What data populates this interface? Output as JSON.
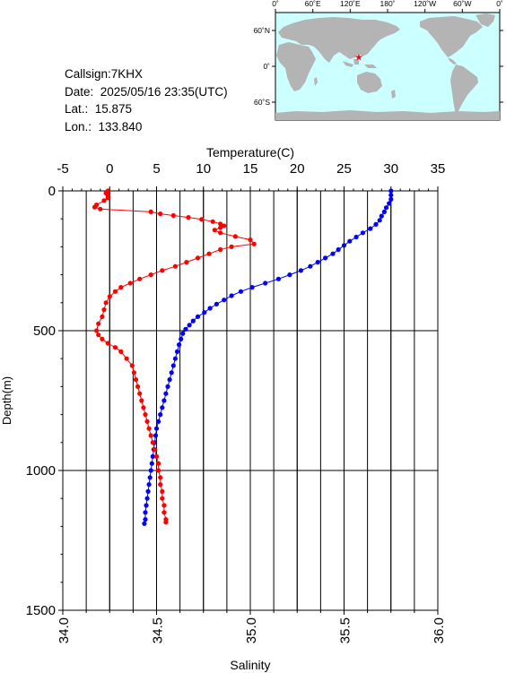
{
  "station": {
    "callsign_line": "Callsign:7KHX",
    "date_line": "Date:  2025/05/16 23:35(UTC)",
    "lat_line": "Lat.:  15.875",
    "lon_line": "Lon.:  133.840"
  },
  "map": {
    "lon_labels": [
      "0˚",
      "60˚E",
      "120˚E",
      "180˚",
      "120˚W",
      "60˚W",
      "0˚"
    ],
    "lat_labels": [
      "60˚N",
      "0˚",
      "60˚S"
    ],
    "ocean_color": "#ccffff",
    "land_color": "#b4b4b4",
    "marker": {
      "lon": 133.84,
      "lat": 15.875,
      "color": "#ff0000",
      "symbol": "star"
    }
  },
  "chart_data": {
    "type": "line",
    "y_axis": {
      "label": "Depth(m)",
      "range": [
        0,
        1500
      ],
      "inverted": true,
      "ticks": [
        0,
        500,
        1000,
        1500
      ]
    },
    "x_top_axis": {
      "label": "Temperature(C)",
      "range": [
        -5,
        35
      ],
      "ticks": [
        -5,
        0,
        5,
        10,
        15,
        20,
        25,
        30,
        35
      ]
    },
    "x_bottom_axis": {
      "label": "Salinity",
      "range": [
        34.0,
        36.0
      ],
      "ticks": [
        "34.0",
        "34.5",
        "35.0",
        "35.5",
        "36.0"
      ]
    },
    "grid": true,
    "series": [
      {
        "quantity": "temperature",
        "axis": "top",
        "color": "#0000ff",
        "points": [
          [
            30.0,
            0
          ],
          [
            30.0,
            15
          ],
          [
            30.0,
            30
          ],
          [
            29.8,
            45
          ],
          [
            29.5,
            60
          ],
          [
            29.3,
            75
          ],
          [
            29.0,
            90
          ],
          [
            28.8,
            105
          ],
          [
            28.4,
            120
          ],
          [
            27.8,
            135
          ],
          [
            27.0,
            150
          ],
          [
            26.3,
            165
          ],
          [
            25.6,
            180
          ],
          [
            25.0,
            195
          ],
          [
            24.4,
            210
          ],
          [
            23.8,
            225
          ],
          [
            23.0,
            240
          ],
          [
            22.2,
            255
          ],
          [
            21.4,
            270
          ],
          [
            20.4,
            285
          ],
          [
            19.2,
            300
          ],
          [
            18.0,
            315
          ],
          [
            16.6,
            330
          ],
          [
            15.2,
            345
          ],
          [
            14.0,
            360
          ],
          [
            13.0,
            375
          ],
          [
            12.2,
            390
          ],
          [
            11.4,
            405
          ],
          [
            10.7,
            420
          ],
          [
            10.1,
            435
          ],
          [
            9.4,
            450
          ],
          [
            8.9,
            465
          ],
          [
            8.5,
            480
          ],
          [
            8.1,
            495
          ],
          [
            7.8,
            510
          ],
          [
            7.6,
            530
          ],
          [
            7.4,
            550
          ],
          [
            7.2,
            575
          ],
          [
            7.0,
            600
          ],
          [
            6.8,
            625
          ],
          [
            6.6,
            650
          ],
          [
            6.4,
            675
          ],
          [
            6.2,
            700
          ],
          [
            6.0,
            725
          ],
          [
            5.8,
            750
          ],
          [
            5.6,
            775
          ],
          [
            5.4,
            800
          ],
          [
            5.2,
            825
          ],
          [
            5.0,
            850
          ],
          [
            4.9,
            875
          ],
          [
            4.8,
            900
          ],
          [
            4.7,
            925
          ],
          [
            4.6,
            950
          ],
          [
            4.5,
            975
          ],
          [
            4.4,
            1000
          ],
          [
            4.3,
            1025
          ],
          [
            4.2,
            1050
          ],
          [
            4.1,
            1075
          ],
          [
            4.0,
            1100
          ],
          [
            3.9,
            1125
          ],
          [
            3.8,
            1150
          ],
          [
            3.8,
            1175
          ],
          [
            3.7,
            1190
          ]
        ]
      },
      {
        "quantity": "salinity",
        "axis": "bottom",
        "color": "#ff0000",
        "points": [
          [
            34.24,
            0
          ],
          [
            34.23,
            8
          ],
          [
            34.24,
            15
          ],
          [
            34.24,
            25
          ],
          [
            34.22,
            35
          ],
          [
            34.18,
            50
          ],
          [
            34.17,
            58
          ],
          [
            34.2,
            65
          ],
          [
            34.47,
            75
          ],
          [
            34.52,
            82
          ],
          [
            34.59,
            88
          ],
          [
            34.67,
            95
          ],
          [
            34.74,
            102
          ],
          [
            34.8,
            110
          ],
          [
            34.84,
            118
          ],
          [
            34.86,
            125
          ],
          [
            34.84,
            132
          ],
          [
            34.81,
            140
          ],
          [
            34.84,
            150
          ],
          [
            34.92,
            163
          ],
          [
            35.0,
            175
          ],
          [
            35.02,
            190
          ],
          [
            34.9,
            200
          ],
          [
            34.84,
            210
          ],
          [
            34.78,
            225
          ],
          [
            34.72,
            240
          ],
          [
            34.66,
            255
          ],
          [
            34.6,
            270
          ],
          [
            34.53,
            285
          ],
          [
            34.47,
            300
          ],
          [
            34.41,
            315
          ],
          [
            34.36,
            330
          ],
          [
            34.31,
            345
          ],
          [
            34.28,
            360
          ],
          [
            34.25,
            378
          ],
          [
            34.23,
            400
          ],
          [
            34.22,
            425
          ],
          [
            34.21,
            450
          ],
          [
            34.19,
            475
          ],
          [
            34.18,
            500
          ],
          [
            34.19,
            515
          ],
          [
            34.21,
            530
          ],
          [
            34.24,
            545
          ],
          [
            34.28,
            560
          ],
          [
            34.31,
            575
          ],
          [
            34.34,
            600
          ],
          [
            34.37,
            625
          ],
          [
            34.38,
            650
          ],
          [
            34.39,
            675
          ],
          [
            34.4,
            700
          ],
          [
            34.41,
            725
          ],
          [
            34.42,
            750
          ],
          [
            34.43,
            775
          ],
          [
            34.44,
            800
          ],
          [
            34.45,
            825
          ],
          [
            34.46,
            850
          ],
          [
            34.47,
            875
          ],
          [
            34.48,
            900
          ],
          [
            34.49,
            925
          ],
          [
            34.5,
            950
          ],
          [
            34.51,
            975
          ],
          [
            34.51,
            1000
          ],
          [
            34.52,
            1025
          ],
          [
            34.52,
            1050
          ],
          [
            34.53,
            1075
          ],
          [
            34.53,
            1100
          ],
          [
            34.54,
            1125
          ],
          [
            34.54,
            1150
          ],
          [
            34.55,
            1175
          ],
          [
            34.55,
            1185
          ]
        ]
      }
    ]
  }
}
